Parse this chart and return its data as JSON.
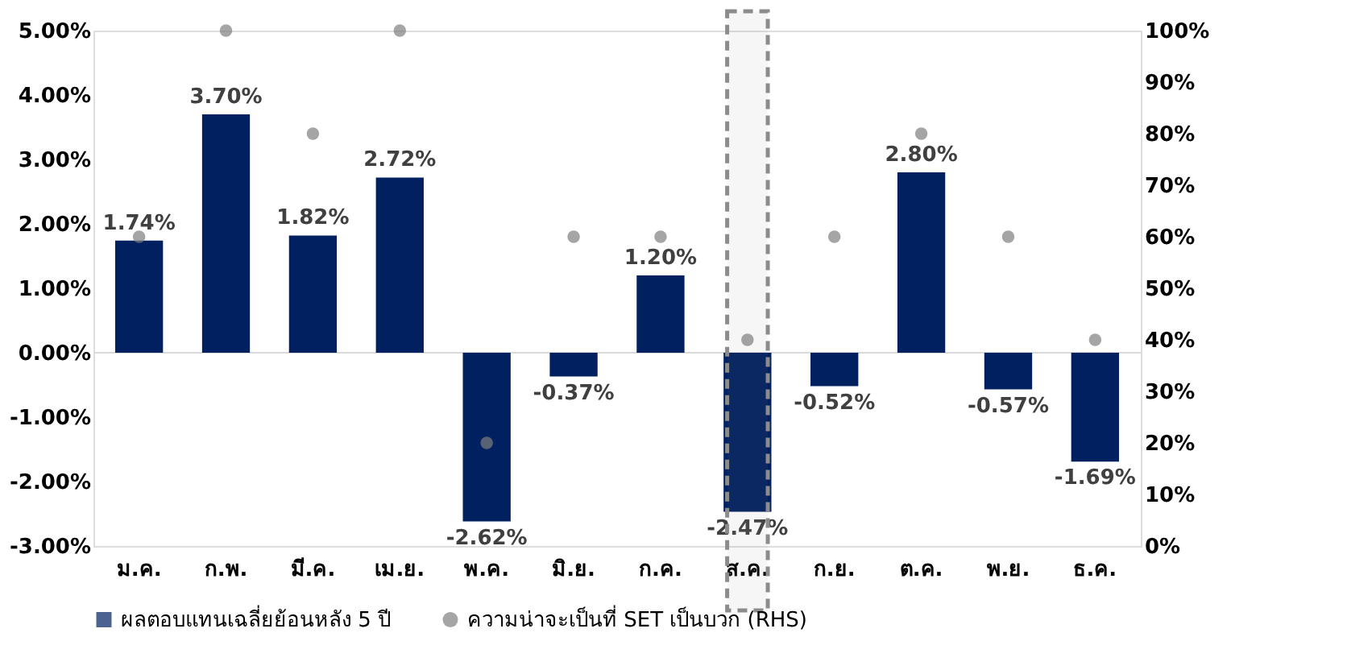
{
  "chart_data": {
    "type": "bar",
    "categories": [
      "ม.ค.",
      "ก.พ.",
      "มี.ค.",
      "เม.ย.",
      "พ.ค.",
      "มิ.ย.",
      "ก.ค.",
      "ส.ค.",
      "ก.ย.",
      "ต.ค.",
      "พ.ย.",
      "ธ.ค."
    ],
    "series": [
      {
        "name": "ผลตอบแทนเฉลี่ยย้อนหลัง 5 ปี",
        "color": "#002060",
        "values": [
          1.74,
          3.7,
          1.82,
          2.72,
          -2.62,
          -0.37,
          1.2,
          -2.47,
          -0.52,
          2.8,
          -0.57,
          -1.69
        ],
        "value_labels": [
          "1.74%",
          "3.70%",
          "1.82%",
          "2.72%",
          "-2.62%",
          "-0.37%",
          "1.20%",
          "-2.47%",
          "-0.52%",
          "2.80%",
          "-0.57%",
          "-1.69%"
        ]
      },
      {
        "name": "ความน่าจะเป็นที่ SET เป็นบวก (RHS)",
        "color": "#7f7f7f",
        "type": "scatter",
        "axis": "y2",
        "marker": "circle",
        "values": [
          60,
          100,
          80,
          100,
          20,
          60,
          60,
          40,
          60,
          80,
          60,
          40
        ]
      }
    ],
    "ylim": [
      -3,
      5
    ],
    "yticks": [
      {
        "value": -3,
        "label": "-3.00%"
      },
      {
        "value": -2,
        "label": "-2.00%"
      },
      {
        "value": -1,
        "label": "-1.00%"
      },
      {
        "value": 0,
        "label": "0.00%"
      },
      {
        "value": 1,
        "label": "1.00%"
      },
      {
        "value": 2,
        "label": "2.00%"
      },
      {
        "value": 3,
        "label": "3.00%"
      },
      {
        "value": 4,
        "label": "4.00%"
      },
      {
        "value": 5,
        "label": "5.00%"
      }
    ],
    "y2lim": [
      0,
      100
    ],
    "y2ticks": [
      {
        "value": 0,
        "label": "0%"
      },
      {
        "value": 10,
        "label": "10%"
      },
      {
        "value": 20,
        "label": "20%"
      },
      {
        "value": 30,
        "label": "30%"
      },
      {
        "value": 40,
        "label": "40%"
      },
      {
        "value": 50,
        "label": "50%"
      },
      {
        "value": 60,
        "label": "60%"
      },
      {
        "value": 70,
        "label": "70%"
      },
      {
        "value": 80,
        "label": "80%"
      },
      {
        "value": 90,
        "label": "90%"
      },
      {
        "value": 100,
        "label": "100%"
      }
    ],
    "ref_lines": [
      {
        "axis": "y",
        "value": 0,
        "color": "#d9d9d9"
      }
    ],
    "bands": [
      {
        "axis": "x",
        "from": "ส.ค.",
        "to": "ส.ค.",
        "color": "#8c8c8c"
      }
    ],
    "grid": false,
    "legend": "bottom"
  }
}
